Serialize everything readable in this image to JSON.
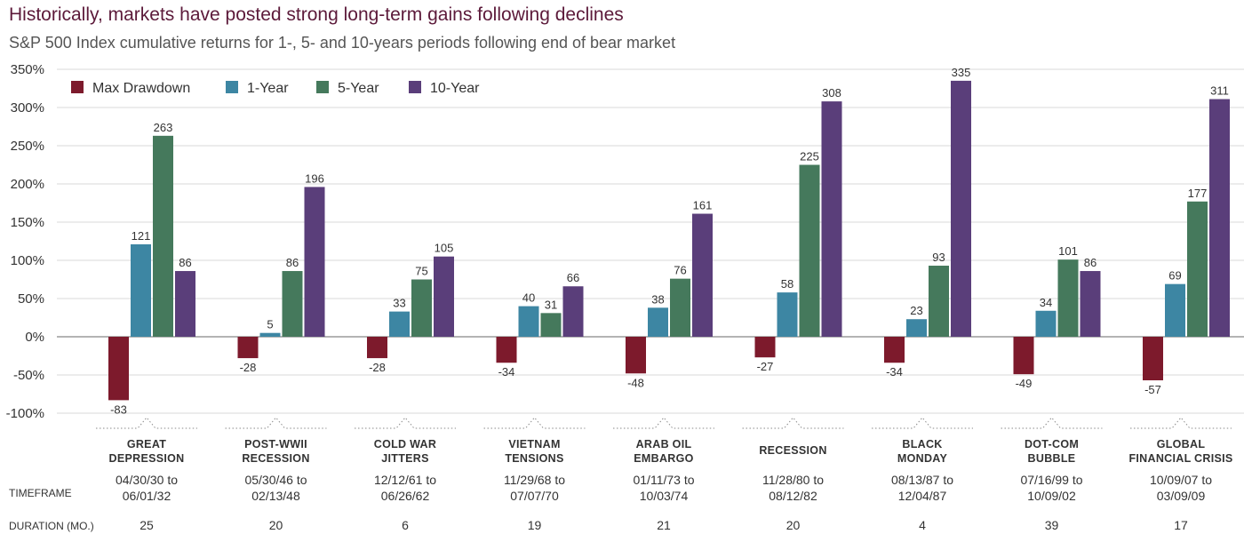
{
  "title": "Historically, markets have posted strong long-term gains following declines",
  "subtitle": "S&P 500 Index cumulative returns for 1-, 5- and 10-years periods following end of bear market",
  "row_labels": {
    "timeframe": "TIMEFRAME",
    "duration": "DURATION (MO.)"
  },
  "colors": {
    "max_drawdown": "#7d1a2c",
    "one_year": "#3d86a3",
    "five_year": "#45795c",
    "ten_year": "#5a3e7a",
    "grid": "#d9d9d9",
    "zero_line": "#888888"
  },
  "chart_data": {
    "type": "bar",
    "title": "Historically, markets have posted strong long-term gains following declines",
    "subtitle": "S&P 500 Index cumulative returns for 1-, 5- and 10-years periods following end of bear market",
    "xlabel": "",
    "ylabel": "",
    "ylim": [
      -100,
      350
    ],
    "yticks": [
      -100,
      -50,
      0,
      50,
      100,
      150,
      200,
      250,
      300,
      350
    ],
    "ytick_labels": [
      "-100%",
      "-50%",
      "0%",
      "50%",
      "100%",
      "150%",
      "200%",
      "250%",
      "300%",
      "350%"
    ],
    "grid": true,
    "legend_position": "top-left",
    "categories": [
      [
        "GREAT",
        "DEPRESSION"
      ],
      [
        "POST-WWII",
        "RECESSION"
      ],
      [
        "COLD WAR",
        "JITTERS"
      ],
      [
        "VIETNAM",
        "TENSIONS"
      ],
      [
        "ARAB OIL",
        "EMBARGO"
      ],
      [
        "RECESSION"
      ],
      [
        "BLACK",
        "MONDAY"
      ],
      [
        "DOT-COM",
        "BUBBLE"
      ],
      [
        "GLOBAL",
        "FINANCIAL CRISIS"
      ]
    ],
    "timeframes": [
      [
        "04/30/30 to",
        "06/01/32"
      ],
      [
        "05/30/46 to",
        "02/13/48"
      ],
      [
        "12/12/61 to",
        "06/26/62"
      ],
      [
        "11/29/68 to",
        "07/07/70"
      ],
      [
        "01/11/73 to",
        "10/03/74"
      ],
      [
        "11/28/80 to",
        "08/12/82"
      ],
      [
        "08/13/87 to",
        "12/04/87"
      ],
      [
        "07/16/99 to",
        "10/09/02"
      ],
      [
        "10/09/07 to",
        "03/09/09"
      ]
    ],
    "durations": [
      "25",
      "20",
      "6",
      "19",
      "21",
      "20",
      "4",
      "39",
      "17"
    ],
    "series": [
      {
        "name": "Max Drawdown",
        "color": "#7d1a2c",
        "values": [
          -83,
          -28,
          -28,
          -34,
          -48,
          -27,
          -34,
          -49,
          -57
        ]
      },
      {
        "name": "1-Year",
        "color": "#3d86a3",
        "values": [
          121,
          5,
          33,
          40,
          38,
          58,
          23,
          34,
          69
        ]
      },
      {
        "name": "5-Year",
        "color": "#45795c",
        "values": [
          263,
          86,
          75,
          31,
          76,
          225,
          93,
          101,
          177
        ]
      },
      {
        "name": "10-Year",
        "color": "#5a3e7a",
        "values": [
          86,
          196,
          105,
          66,
          161,
          308,
          335,
          86,
          311
        ]
      }
    ]
  }
}
